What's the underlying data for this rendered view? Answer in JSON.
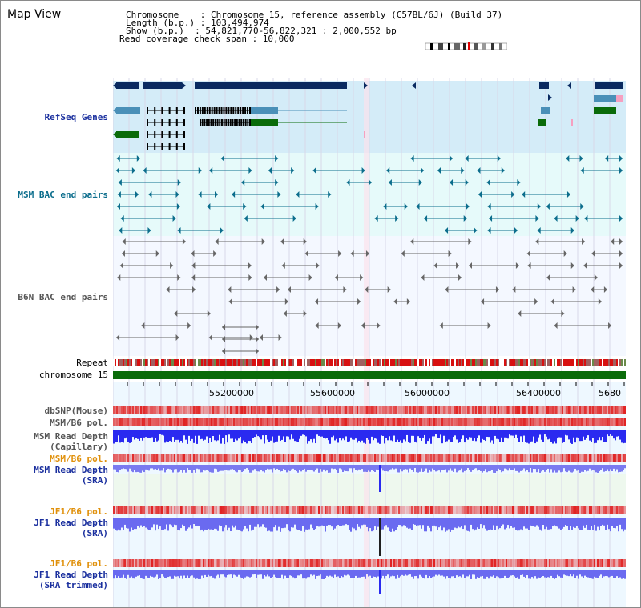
{
  "title": "Map View",
  "header": {
    "chromosome_line": "Chromosome    : Chromosome 15, reference assembly (C57BL/6J) (Build 37)",
    "length_line": "Length (b.p.) : 103,494,974",
    "show_line": "Show (b.p.)  : 54,821,770-56,822,321 : 2,000,552 bp",
    "coverage_line": "Read coverage check span : 10,000"
  },
  "labels": {
    "refseq": "RefSeq Genes",
    "msm_bac": "MSM BAC end pairs",
    "b6n_bac": "B6N BAC end pairs",
    "repeat": "Repeat",
    "chromosome": "chromosome 15",
    "dbsnp": "dbSNP(Mouse)",
    "msm_b6_pol": "MSM/B6 pol.",
    "msm_depth_cap_1": "MSM Read Depth",
    "msm_depth_cap_2": "(Capillary)",
    "msm_b6_pol_2": "MSM/B6 pol.",
    "msm_depth_sra_1": "MSM Read Depth",
    "msm_depth_sra_2": "(SRA)",
    "jf1_pol_1": "JF1/B6 pol.",
    "jf1_depth_sra_1": "JF1 Read Depth",
    "jf1_depth_sra_2": "(SRA)",
    "jf1_pol_2": "JF1/B6 pol.",
    "jf1_depth_trim_1": "JF1 Read Depth",
    "jf1_depth_trim_2": "(SRA trimmed)"
  },
  "axis": {
    "ticks": [
      "55200000",
      "55600000",
      "56000000",
      "56400000",
      "5680"
    ]
  },
  "colors": {
    "refseq_bg": "#d4ecf8",
    "bac_bg": "#e6fafa",
    "gene_dark": "#0a2a60",
    "gene_light": "#4a90b8",
    "gene_green": "#0a6b0a",
    "msm_pair": "#0b6d8c",
    "b6n_pair": "#666666",
    "chrom_green": "#0a6b0a",
    "pol_red": "#e02020",
    "depth_blue": "#2a2af0"
  }
}
